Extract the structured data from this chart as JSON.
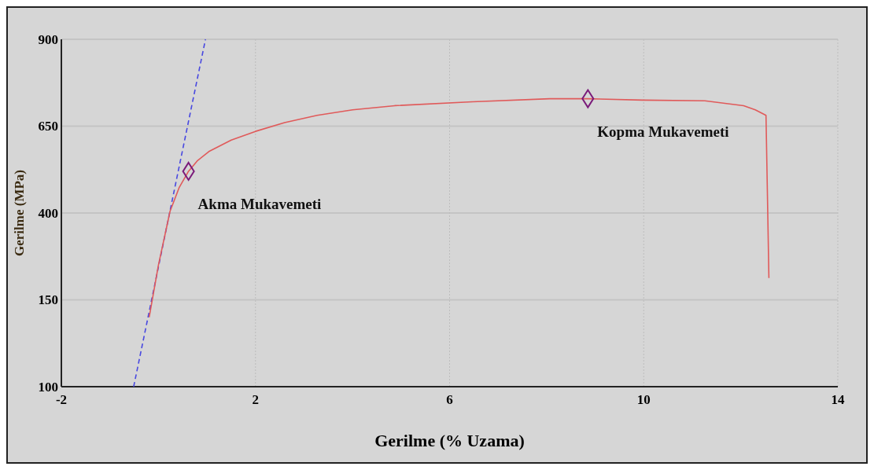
{
  "chart_data": {
    "type": "line",
    "xlabel": "Gerilme (% Uzama)",
    "ylabel": "Gerilme (MPa)",
    "xlim": [
      -2,
      14
    ],
    "xticks": [
      -2,
      2,
      6,
      10,
      14
    ],
    "ylim": [
      -100,
      900
    ],
    "yticks": [
      {
        "value": -100,
        "label": "100"
      },
      150,
      400,
      650,
      900
    ],
    "grid": true,
    "series": [
      {
        "color": "#4848e0",
        "line_style": "dashed",
        "x": [
          -0.51,
          0.97
        ],
        "values": [
          -100,
          900
        ]
      },
      {
        "color": "#e05a5a",
        "line_style": "solid",
        "x": [
          -0.19,
          0.0,
          0.24,
          0.43,
          0.62,
          0.8,
          1.04,
          1.5,
          2.0,
          2.6,
          3.27,
          4.0,
          4.87,
          6.47,
          8.06,
          8.85,
          9.98,
          11.26,
          12.06,
          12.3,
          12.52,
          12.55,
          12.58
        ],
        "values": [
          100,
          250,
          405,
          474,
          520,
          550,
          577,
          610,
          635,
          660,
          681,
          697,
          709,
          720,
          729,
          729,
          725,
          723,
          709,
          697,
          681,
          450,
          213
        ]
      },
      {
        "type": "scatter",
        "color": "#7a1a7a",
        "marker": "diamond",
        "x": [
          0.62,
          8.85
        ],
        "values": [
          520,
          729
        ]
      }
    ],
    "annotations": [
      {
        "text": "Akma Mukavemeti",
        "x": 0.62,
        "y": 520
      },
      {
        "text": "Kopma Mukavemeti",
        "x": 8.85,
        "y": 729
      }
    ]
  }
}
